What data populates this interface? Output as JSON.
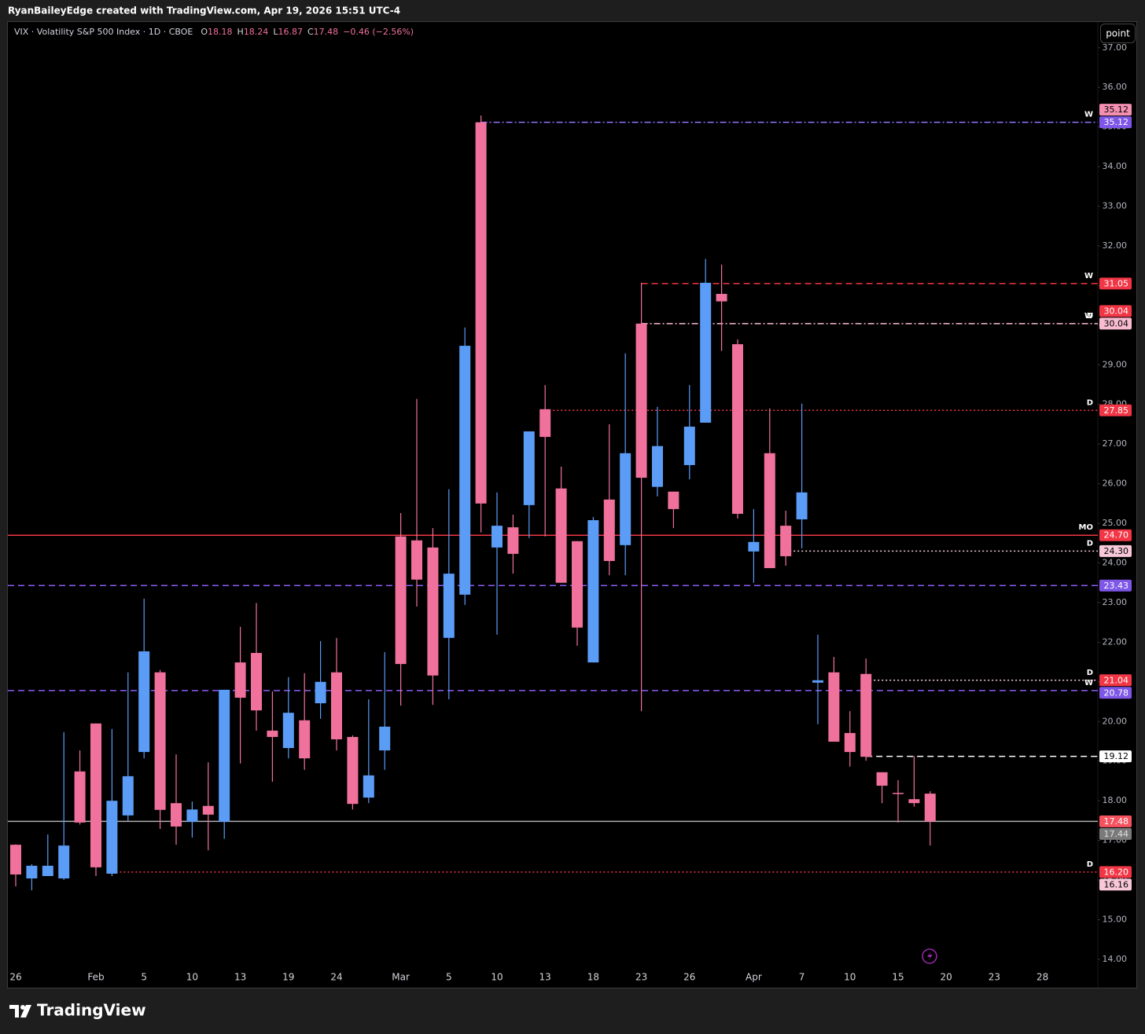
{
  "header": "RyanBaileyEdge created with TradingView.com, Apr 19, 2026 15:51 UTC-4",
  "button": "point",
  "footer": "TradingView",
  "chart_data": {
    "type": "candlestick",
    "legend": {
      "title": "VIX · Volatility S&P 500 Index · 1D · CBOE",
      "items": [
        {
          "key": "O",
          "value": "18.18"
        },
        {
          "key": "H",
          "value": "18.24"
        },
        {
          "key": "L",
          "value": "16.87"
        },
        {
          "key": "C",
          "value": "17.48"
        }
      ],
      "change": "−0.46 (−2.56%)"
    },
    "up_color": "#5b9cf6",
    "down_color": "#f0719b",
    "categories": [
      "26",
      null,
      null,
      null,
      null,
      "Feb",
      null,
      null,
      "5",
      null,
      null,
      "10",
      null,
      null,
      "13",
      null,
      null,
      "19",
      null,
      null,
      "24",
      null,
      null,
      null,
      "Mar",
      null,
      null,
      "5",
      null,
      null,
      "10",
      null,
      null,
      "13",
      null,
      null,
      "18",
      null,
      null,
      "23",
      null,
      null,
      "26",
      null,
      null,
      null,
      "Apr",
      null,
      null,
      "7",
      null,
      null,
      "10",
      null,
      null,
      "15",
      null,
      null,
      "20",
      null,
      null,
      "23",
      null,
      null,
      "28"
    ],
    "open": [
      16.89,
      16.04,
      16.1,
      16.04,
      18.74,
      19.95,
      16.16,
      17.63,
      19.23,
      21.24,
      17.94,
      17.47,
      17.87,
      17.47,
      21.49,
      21.73,
      19.77,
      19.33,
      20.03,
      20.46,
      21.24,
      19.61,
      18.08,
      19.27,
      24.67,
      24.57,
      24.39,
      22.11,
      23.2,
      35.12,
      24.39,
      24.9,
      25.46,
      27.88,
      25.88,
      24.55,
      21.49,
      25.6,
      24.45,
      30.04,
      25.92,
      25.8,
      26.47,
      27.54,
      30.79,
      29.52,
      24.29,
      26.77,
      24.94,
      25.1,
      20.98,
      21.24,
      19.71,
      21.2,
      18.72,
      18.2,
      18.04,
      18.18,
      null,
      null,
      null,
      null,
      null,
      null,
      null
    ],
    "high": [
      16.9,
      16.4,
      17.15,
      19.73,
      19.27,
      19.95,
      19.81,
      21.24,
      23.1,
      21.3,
      19.17,
      17.98,
      18.97,
      20.8,
      22.39,
      22.99,
      20.76,
      21.12,
      21.22,
      22.03,
      22.11,
      19.65,
      20.56,
      21.75,
      25.26,
      28.14,
      24.88,
      25.86,
      29.94,
      35.29,
      25.78,
      25.22,
      27.32,
      28.49,
      26.43,
      24.55,
      25.16,
      27.5,
      29.29,
      31.07,
      27.94,
      25.8,
      28.49,
      31.67,
      31.53,
      29.64,
      25.36,
      27.9,
      25.32,
      28.02,
      22.19,
      21.63,
      20.26,
      21.59,
      18.72,
      18.52,
      19.13,
      18.24,
      null,
      null,
      null,
      null,
      null,
      null,
      null
    ],
    "low": [
      15.84,
      15.74,
      16.1,
      16.0,
      17.4,
      16.1,
      16.1,
      17.49,
      19.07,
      17.29,
      16.89,
      17.07,
      16.75,
      17.04,
      18.94,
      19.77,
      18.48,
      19.07,
      18.78,
      20.07,
      19.27,
      17.78,
      17.94,
      18.78,
      20.4,
      22.9,
      20.42,
      20.56,
      22.94,
      24.77,
      22.19,
      23.73,
      24.63,
      24.67,
      23.5,
      21.91,
      21.49,
      23.69,
      23.69,
      20.26,
      25.68,
      24.88,
      26.11,
      27.54,
      29.35,
      25.12,
      23.5,
      23.87,
      23.93,
      24.37,
      19.93,
      19.49,
      18.86,
      19.01,
      17.94,
      17.45,
      17.85,
      16.87,
      null,
      null,
      null,
      null,
      null,
      null,
      null
    ],
    "close": [
      16.14,
      16.36,
      16.36,
      16.87,
      17.45,
      16.32,
      18.0,
      18.62,
      21.77,
      17.77,
      17.35,
      17.78,
      17.65,
      20.8,
      20.6,
      20.28,
      19.61,
      20.22,
      19.07,
      21.0,
      19.55,
      17.92,
      18.64,
      19.87,
      21.45,
      23.58,
      21.16,
      23.73,
      29.48,
      25.5,
      24.94,
      24.23,
      27.32,
      27.18,
      23.5,
      22.37,
      25.08,
      24.05,
      26.77,
      26.15,
      26.95,
      25.36,
      27.44,
      31.07,
      30.6,
      25.24,
      24.53,
      23.87,
      24.17,
      25.78,
      21.04,
      19.49,
      19.23,
      19.11,
      18.38,
      18.18,
      17.94,
      17.48,
      null,
      null,
      null,
      null,
      null,
      null,
      null
    ],
    "ylim": [
      13.78,
      37.65
    ],
    "yticks": [
      {
        "value": 14,
        "label": "14.00"
      },
      {
        "value": 15,
        "label": "15.00"
      },
      {
        "value": 16,
        "label": "16.00"
      },
      {
        "value": 17,
        "label": "17.00"
      },
      {
        "value": 18,
        "label": "18.00"
      },
      {
        "value": 19,
        "label": "19.00"
      },
      {
        "value": 20,
        "label": "20.00"
      },
      {
        "value": 21,
        "label": "21.00"
      },
      {
        "value": 22,
        "label": "22.00"
      },
      {
        "value": 23,
        "label": "23.00"
      },
      {
        "value": 24,
        "label": "24.00"
      },
      {
        "value": 25,
        "label": "25.00"
      },
      {
        "value": 26,
        "label": "26.00"
      },
      {
        "value": 27,
        "label": "27.00"
      },
      {
        "value": 28,
        "label": "28.00"
      },
      {
        "value": 29,
        "label": "29.00"
      },
      {
        "value": 30,
        "label": "30.00"
      },
      {
        "value": 31,
        "label": "31.00"
      },
      {
        "value": 32,
        "label": "32.00"
      },
      {
        "value": 33,
        "label": "33.00"
      },
      {
        "value": 34,
        "label": "34.00"
      },
      {
        "value": 35,
        "label": "35.00"
      },
      {
        "value": 36,
        "label": "36.00"
      },
      {
        "value": 37,
        "label": "37.00"
      }
    ],
    "grid": false,
    "levels": [
      {
        "value": 35.12,
        "value_label": "35.12",
        "tag": "W",
        "color": "#9575ff",
        "line": "dashdot",
        "from": 29,
        "tag_color": "#7e57e8",
        "text_color": "#ffffff"
      },
      {
        "value": 35.12,
        "value_label": "35.12",
        "color": "#f48fb1",
        "line": "none",
        "tag_color": "#f48fb1",
        "text_color": "#000000"
      },
      {
        "value": 31.05,
        "value_label": "31.05",
        "tag": "W",
        "color": "#f23645",
        "line": "dashed",
        "from": 39,
        "tag_color": "#f23645",
        "text_color": "#ffffff"
      },
      {
        "value": 30.04,
        "value_label": "30.04",
        "tag": "W",
        "color": "#f8bbd0",
        "line": "dashdot",
        "from": 39,
        "tag_color": "#f8bbd0",
        "text_color": "#000000"
      },
      {
        "value": 30.04,
        "value_label": "30.04",
        "tag": "D",
        "color": "#f23645",
        "line": "none",
        "tag_color": "#f23645",
        "text_color": "#ffffff"
      },
      {
        "value": 27.85,
        "value_label": "27.85",
        "tag": "D",
        "color": "#f23645",
        "line": "dotted",
        "from": 33,
        "tag_color": "#f23645",
        "text_color": "#ffffff"
      },
      {
        "value": 24.7,
        "value_label": "24.70",
        "tag": "MO",
        "color": "#f23645",
        "line": "solid",
        "tag_color": "#f23645",
        "text_color": "#ffffff"
      },
      {
        "value": 24.3,
        "value_label": "24.30",
        "tag": "D",
        "color": "#f8d0dc",
        "line": "dotted",
        "from": 48,
        "tag_color": "#f8c8d8",
        "text_color": "#000000"
      },
      {
        "value": 23.43,
        "value_label": "23.43",
        "color": "#8c5cf5",
        "line": "dashed",
        "tag_color": "#7e57e8",
        "text_color": "#ffffff"
      },
      {
        "value": 21.04,
        "value_label": "21.04",
        "tag": "D",
        "color": "#f8d0dc",
        "line": "dotted",
        "from": 53,
        "tag_color": "#f23645",
        "text_color": "#ffffff"
      },
      {
        "value": 20.78,
        "value_label": "20.78",
        "tag": "W",
        "color": "#8c5cf5",
        "line": "dashed",
        "tag_color": "#7e57e8",
        "text_color": "#ffffff"
      },
      {
        "value": 19.12,
        "value_label": "19.12",
        "color": "#ffffff",
        "line": "dashed",
        "from": 53,
        "tag_color": "#ffffff",
        "text_color": "#000000"
      },
      {
        "value": 17.48,
        "value_label": "17.48",
        "color": "#b0b0b0",
        "line": "solid",
        "tag_color": "#f7525f",
        "text_color": "#ffffff"
      },
      {
        "value": 17.44,
        "value_label": "17.44",
        "color": "#777777",
        "line": "none",
        "tag_color": "#7a7a7a",
        "text_color": "#e0e0e0"
      },
      {
        "value": 16.2,
        "value_label": "16.20",
        "tag": "D",
        "color": "#f23645",
        "line": "dotted",
        "from": 6,
        "tag_color": "#f23645",
        "text_color": "#ffffff"
      },
      {
        "value": 16.16,
        "value_label": "16.16",
        "color": "#f8bbd0",
        "line": "none",
        "tag_color": "#f8c8d8",
        "text_color": "#000000"
      }
    ]
  }
}
